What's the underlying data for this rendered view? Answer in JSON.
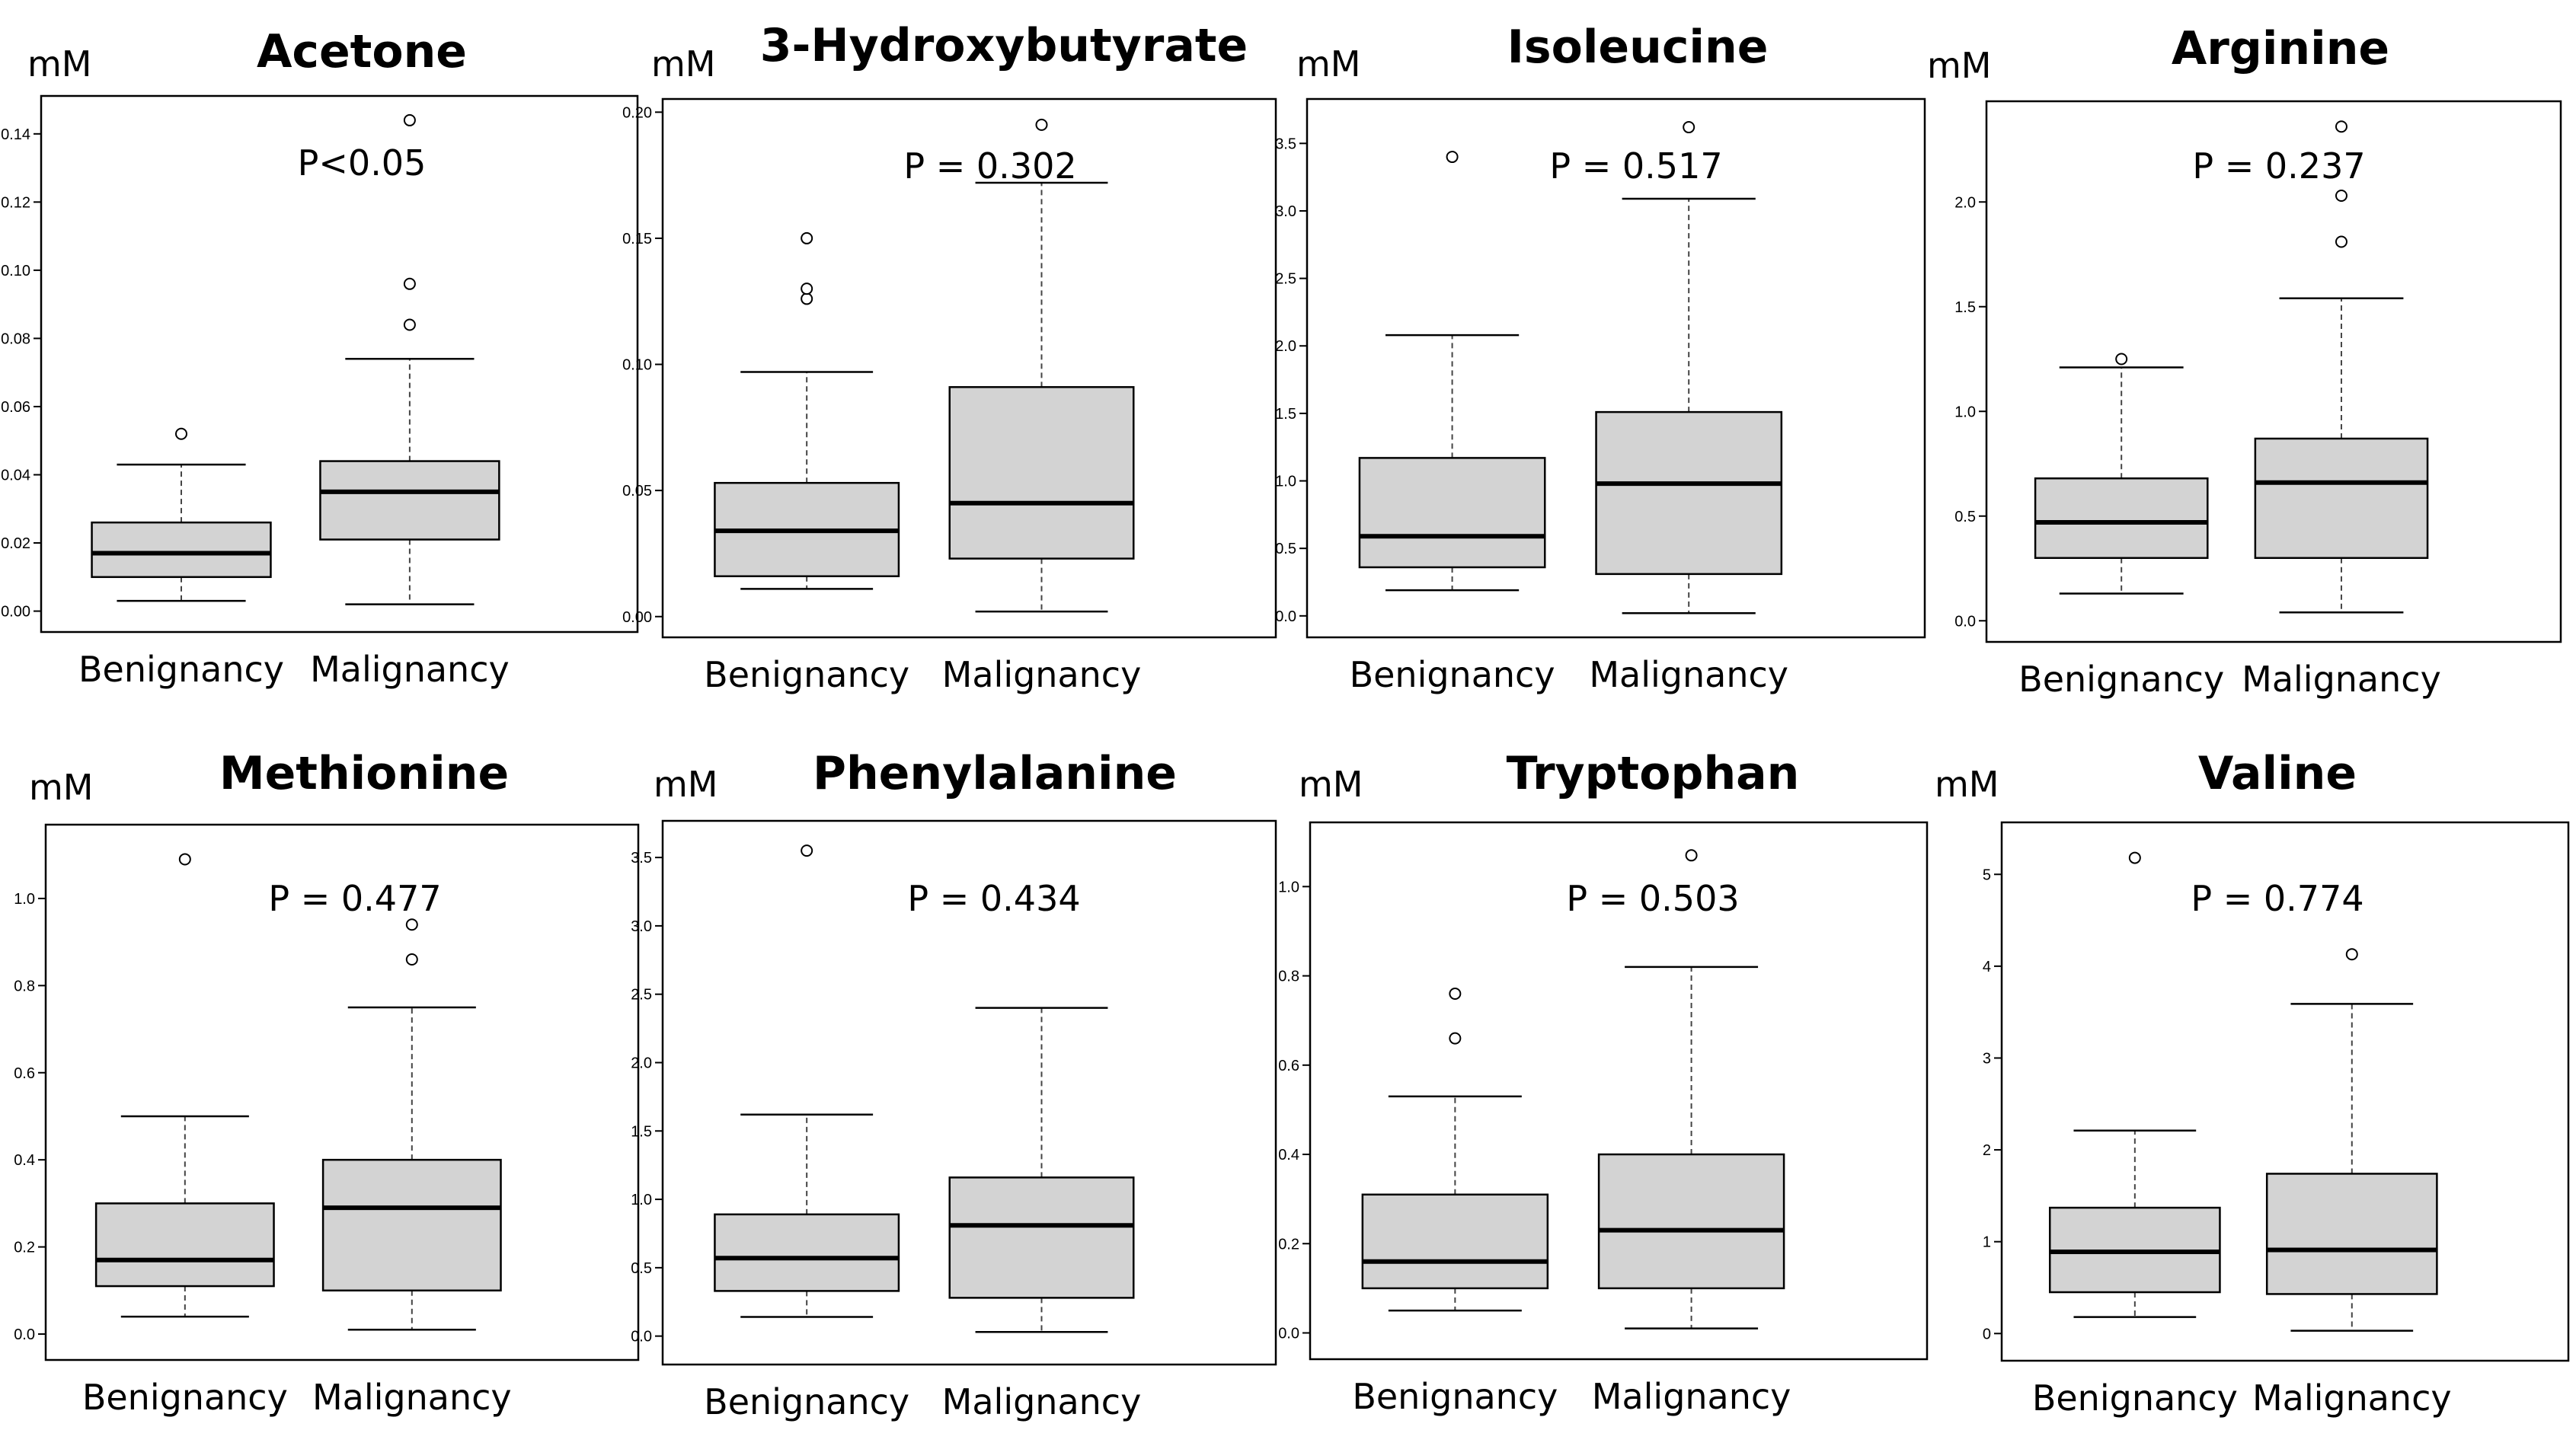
{
  "chart_data": [
    {
      "type": "box",
      "title": "Acetone",
      "unit": "mM",
      "pvalue": "P<0.05",
      "yticks": [
        0.0,
        0.02,
        0.04,
        0.06,
        0.08,
        0.1,
        0.12,
        0.14
      ],
      "ytick_labels": [
        "0.00",
        "0.02",
        "0.04",
        "0.06",
        "0.08",
        "0.10",
        "0.12",
        "0.14"
      ],
      "ylim": [
        -0.003,
        0.148
      ],
      "categories": [
        "Benignancy",
        "Malignancy"
      ],
      "boxes": [
        {
          "group": "Benignancy",
          "whisker_low": 0.003,
          "q1": 0.01,
          "median": 0.017,
          "q3": 0.026,
          "whisker_high": 0.043,
          "outliers": [
            0.052
          ]
        },
        {
          "group": "Malignancy",
          "whisker_low": 0.002,
          "q1": 0.021,
          "median": 0.035,
          "q3": 0.044,
          "whisker_high": 0.074,
          "outliers": [
            0.084,
            0.096,
            0.144
          ]
        }
      ]
    },
    {
      "type": "box",
      "title": "3-Hydroxybutyrate",
      "unit": "mM",
      "pvalue": "P = 0.302",
      "yticks": [
        0.0,
        0.05,
        0.1,
        0.15,
        0.2
      ],
      "ytick_labels": [
        "0.00",
        "0.05",
        "0.10",
        "0.15",
        "0.20"
      ],
      "ylim": [
        -0.004,
        0.201
      ],
      "categories": [
        "Benignancy",
        "Malignancy"
      ],
      "boxes": [
        {
          "group": "Benignancy",
          "whisker_low": 0.011,
          "q1": 0.016,
          "median": 0.034,
          "q3": 0.053,
          "whisker_high": 0.097,
          "outliers": [
            0.126,
            0.13,
            0.15
          ]
        },
        {
          "group": "Malignancy",
          "whisker_low": 0.002,
          "q1": 0.023,
          "median": 0.045,
          "q3": 0.091,
          "whisker_high": 0.172,
          "outliers": [
            0.195
          ]
        }
      ]
    },
    {
      "type": "box",
      "title": "Isoleucine",
      "unit": "mM",
      "pvalue": "P = 0.517",
      "yticks": [
        0.0,
        0.5,
        1.0,
        1.5,
        2.0,
        2.5,
        3.0,
        3.5
      ],
      "ytick_labels": [
        "0.0",
        "0.5",
        "1.0",
        "1.5",
        "2.0",
        "2.5",
        "3.0",
        "3.5"
      ],
      "ylim": [
        -0.08,
        3.75
      ],
      "categories": [
        "Benignancy",
        "Malignancy"
      ],
      "boxes": [
        {
          "group": "Benignancy",
          "whisker_low": 0.19,
          "q1": 0.36,
          "median": 0.59,
          "q3": 1.17,
          "whisker_high": 2.08,
          "outliers": [
            3.4
          ]
        },
        {
          "group": "Malignancy",
          "whisker_low": 0.02,
          "q1": 0.31,
          "median": 0.98,
          "q3": 1.51,
          "whisker_high": 3.09,
          "outliers": [
            3.62
          ]
        }
      ]
    },
    {
      "type": "box",
      "title": "Arginine",
      "unit": "mM",
      "pvalue": "P = 0.237",
      "yticks": [
        0.0,
        0.5,
        1.0,
        1.5,
        2.0
      ],
      "ytick_labels": [
        "0.0",
        "0.5",
        "1.0",
        "1.5",
        "2.0"
      ],
      "ylim": [
        -0.05,
        2.43
      ],
      "categories": [
        "Benignancy",
        "Malignancy"
      ],
      "boxes": [
        {
          "group": "Benignancy",
          "whisker_low": 0.13,
          "q1": 0.3,
          "median": 0.47,
          "q3": 0.68,
          "whisker_high": 1.21,
          "outliers": [
            1.25
          ]
        },
        {
          "group": "Malignancy",
          "whisker_low": 0.04,
          "q1": 0.3,
          "median": 0.66,
          "q3": 0.87,
          "whisker_high": 1.54,
          "outliers": [
            1.81,
            2.03,
            2.36
          ]
        }
      ]
    },
    {
      "type": "box",
      "title": "Methionine",
      "unit": "mM",
      "pvalue": "P = 0.477",
      "yticks": [
        0.0,
        0.2,
        0.4,
        0.6,
        0.8,
        1.0
      ],
      "ytick_labels": [
        "0.0",
        "0.2",
        "0.4",
        "0.6",
        "0.8",
        "1.0"
      ],
      "ylim": [
        -0.035,
        1.145
      ],
      "categories": [
        "Benignancy",
        "Malignancy"
      ],
      "boxes": [
        {
          "group": "Benignancy",
          "whisker_low": 0.04,
          "q1": 0.11,
          "median": 0.17,
          "q3": 0.3,
          "whisker_high": 0.5,
          "outliers": [
            1.09
          ]
        },
        {
          "group": "Malignancy",
          "whisker_low": 0.01,
          "q1": 0.1,
          "median": 0.29,
          "q3": 0.4,
          "whisker_high": 0.75,
          "outliers": [
            0.86,
            0.94
          ]
        }
      ]
    },
    {
      "type": "box",
      "title": "Phenylalanine",
      "unit": "mM",
      "pvalue": "P = 0.434",
      "yticks": [
        0.0,
        0.5,
        1.0,
        1.5,
        2.0,
        2.5,
        3.0,
        3.5
      ],
      "ytick_labels": [
        "0.0",
        "0.5",
        "1.0",
        "1.5",
        "2.0",
        "2.5",
        "3.0",
        "3.5"
      ],
      "ylim": [
        -0.13,
        3.69
      ],
      "categories": [
        "Benignancy",
        "Malignancy"
      ],
      "boxes": [
        {
          "group": "Benignancy",
          "whisker_low": 0.14,
          "q1": 0.33,
          "median": 0.57,
          "q3": 0.89,
          "whisker_high": 1.62,
          "outliers": [
            3.55
          ]
        },
        {
          "group": "Malignancy",
          "whisker_low": 0.03,
          "q1": 0.28,
          "median": 0.81,
          "q3": 1.16,
          "whisker_high": 2.4,
          "outliers": []
        }
      ]
    },
    {
      "type": "box",
      "title": "Tryptophan",
      "unit": "mM",
      "pvalue": "P = 0.503",
      "yticks": [
        0.0,
        0.2,
        0.4,
        0.6,
        0.8,
        1.0
      ],
      "ytick_labels": [
        "0.0",
        "0.2",
        "0.4",
        "0.6",
        "0.8",
        "1.0"
      ],
      "ylim": [
        -0.035,
        1.12
      ],
      "categories": [
        "Benignancy",
        "Malignancy"
      ],
      "boxes": [
        {
          "group": "Benignancy",
          "whisker_low": 0.05,
          "q1": 0.1,
          "median": 0.16,
          "q3": 0.31,
          "whisker_high": 0.53,
          "outliers": [
            0.66,
            0.76
          ]
        },
        {
          "group": "Malignancy",
          "whisker_low": 0.01,
          "q1": 0.1,
          "median": 0.23,
          "q3": 0.4,
          "whisker_high": 0.82,
          "outliers": [
            1.07
          ]
        }
      ]
    },
    {
      "type": "box",
      "title": "Valine",
      "unit": "mM",
      "pvalue": "P = 0.774",
      "yticks": [
        0,
        1,
        2,
        3,
        4,
        5
      ],
      "ytick_labels": [
        "0",
        "1",
        "2",
        "3",
        "4",
        "5"
      ],
      "ylim": [
        -0.18,
        5.45
      ],
      "categories": [
        "Benignancy",
        "Malignancy"
      ],
      "boxes": [
        {
          "group": "Benignancy",
          "whisker_low": 0.18,
          "q1": 0.45,
          "median": 0.89,
          "q3": 1.37,
          "whisker_high": 2.21,
          "outliers": [
            5.18
          ]
        },
        {
          "group": "Malignancy",
          "whisker_low": 0.03,
          "q1": 0.43,
          "median": 0.91,
          "q3": 1.74,
          "whisker_high": 3.59,
          "outliers": [
            4.13
          ]
        }
      ]
    }
  ]
}
